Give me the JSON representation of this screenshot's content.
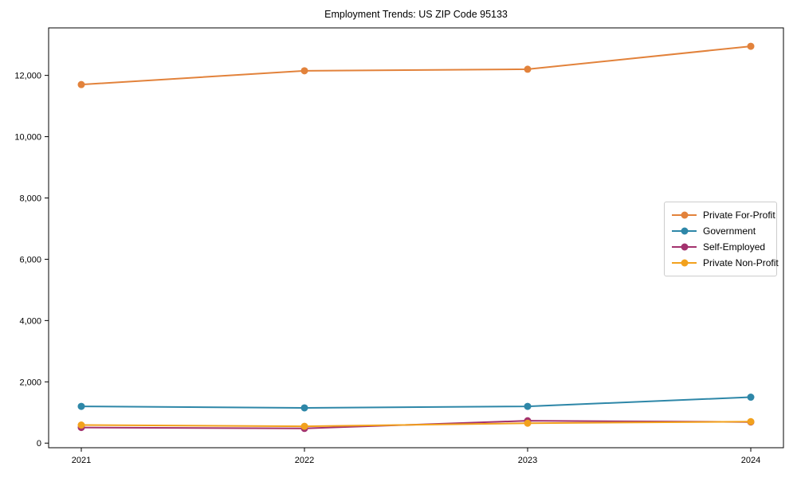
{
  "title": "Employment Trends: US ZIP Code 95133",
  "chart_data": {
    "type": "line",
    "title": "Employment Trends: US ZIP Code 95133",
    "x": [
      2021,
      2022,
      2023,
      2024
    ],
    "xtick_labels": [
      "2021",
      "2022",
      "2023",
      "2024"
    ],
    "yticks": [
      0,
      2000,
      4000,
      6000,
      8000,
      10000,
      12000
    ],
    "ytick_labels": [
      "0",
      "2,000",
      "4,000",
      "6,000",
      "8,000",
      "10,000",
      "12,000"
    ],
    "ylim": [
      -150,
      13550
    ],
    "xlabel": "",
    "ylabel": "",
    "grid": false,
    "legend_position": "center right",
    "series": [
      {
        "name": "Private For-Profit",
        "color": "#E2823B",
        "values": [
          11700,
          12150,
          12200,
          12950
        ]
      },
      {
        "name": "Government",
        "color": "#2E87A8",
        "values": [
          1200,
          1150,
          1200,
          1500
        ]
      },
      {
        "name": "Self-Employed",
        "color": "#A3326E",
        "values": [
          510,
          480,
          730,
          690
        ]
      },
      {
        "name": "Private Non-Profit",
        "color": "#F2A11D",
        "values": [
          590,
          550,
          650,
          700
        ]
      }
    ]
  },
  "colors": {
    "axis": "#000000",
    "legend_border": "#cccccc",
    "background": "#ffffff"
  }
}
